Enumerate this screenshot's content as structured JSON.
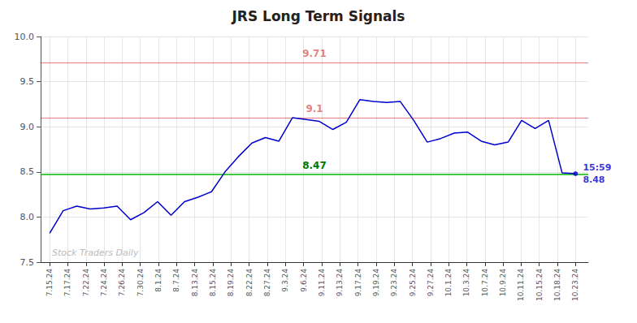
{
  "chart_data": {
    "type": "line",
    "title": "JRS Long Term Signals",
    "color": "#0000cc",
    "x": [
      0,
      0.74359,
      1.487179,
      2.230769,
      2.974359,
      3.717949,
      4.461538,
      5.205128,
      5.948718,
      6.692308,
      7.435897,
      8.179487,
      8.923077,
      9.666667,
      10.410256,
      11.153846,
      11.897436,
      12.641026,
      13.384615,
      14.128205,
      14.871795,
      15.615385,
      16.358974,
      17.102564,
      17.846154,
      18.589744,
      19.333333,
      20.076923,
      20.820513,
      21.564103,
      22.307692,
      23.051282,
      23.794872,
      24.538462,
      25.282051,
      26.025641,
      26.769231,
      27.512821,
      28.25641,
      29
    ],
    "values": [
      7.82,
      8.07,
      8.12,
      8.09,
      8.1,
      8.12,
      7.97,
      8.05,
      8.17,
      8.02,
      8.17,
      8.22,
      8.28,
      8.5,
      8.67,
      8.82,
      8.88,
      8.84,
      9.1,
      9.08,
      9.06,
      8.97,
      9.05,
      9.3,
      9.28,
      9.27,
      9.28,
      9.07,
      8.83,
      8.87,
      8.93,
      8.94,
      8.84,
      8.8,
      8.83,
      9.07,
      8.98,
      9.07,
      8.49,
      8.48
    ],
    "xlim": [
      -0.5,
      29.7
    ],
    "xticks": [
      {
        "value": 0,
        "label": "7.15.24"
      },
      {
        "value": 1,
        "label": "7.17.24"
      },
      {
        "value": 2,
        "label": "7.22.24"
      },
      {
        "value": 3,
        "label": "7.24.24"
      },
      {
        "value": 4,
        "label": "7.26.24"
      },
      {
        "value": 5,
        "label": "7.30.24"
      },
      {
        "value": 6,
        "label": "8.1.24"
      },
      {
        "value": 7,
        "label": "8.7.24"
      },
      {
        "value": 8,
        "label": "8.13.24"
      },
      {
        "value": 9,
        "label": "8.15.24"
      },
      {
        "value": 10,
        "label": "8.19.24"
      },
      {
        "value": 11,
        "label": "8.22.24"
      },
      {
        "value": 12,
        "label": "8.27.24"
      },
      {
        "value": 13,
        "label": "9.3.24"
      },
      {
        "value": 14,
        "label": "9.6.24"
      },
      {
        "value": 15,
        "label": "9.11.24"
      },
      {
        "value": 16,
        "label": "9.13.24"
      },
      {
        "value": 17,
        "label": "9.17.24"
      },
      {
        "value": 18,
        "label": "9.19.24"
      },
      {
        "value": 19,
        "label": "9.23.24"
      },
      {
        "value": 20,
        "label": "9.25.24"
      },
      {
        "value": 21,
        "label": "9.27.24"
      },
      {
        "value": 22,
        "label": "10.1.24"
      },
      {
        "value": 23,
        "label": "10.3.24"
      },
      {
        "value": 24,
        "label": "10.7.24"
      },
      {
        "value": 25,
        "label": "10.9.24"
      },
      {
        "value": 26,
        "label": "10.11.24"
      },
      {
        "value": 27,
        "label": "10.15.24"
      },
      {
        "value": 28,
        "label": "10.18.24"
      },
      {
        "value": 29,
        "label": "10.23.24"
      }
    ],
    "ylim": [
      7.5,
      10.0
    ],
    "yticks": [
      7.5,
      {
        "value": 8.0,
        "label": "8.0"
      },
      8.5,
      {
        "value": 9.0,
        "label": "9.0"
      },
      9.5,
      {
        "value": 10.0,
        "label": "10.0"
      }
    ],
    "grid": true,
    "reference_lines": [
      {
        "value": 9.71,
        "color": "#cc0000",
        "label": "9.71",
        "label_color": "#cc0000"
      },
      {
        "value": 9.1,
        "color": "#cc0000",
        "label": "9.1",
        "label_color": "#cc0000"
      },
      {
        "value": 8.47,
        "color": "#00bb00",
        "label": "8.47",
        "label_color": "#007700"
      }
    ],
    "annotations": [
      {
        "text": "15:59",
        "color": "#0000cc"
      },
      {
        "text": "8.48",
        "color": "#0000cc"
      }
    ],
    "watermark": {
      "text": "Stock Traders Daily",
      "color": "#bbbbbb"
    }
  }
}
